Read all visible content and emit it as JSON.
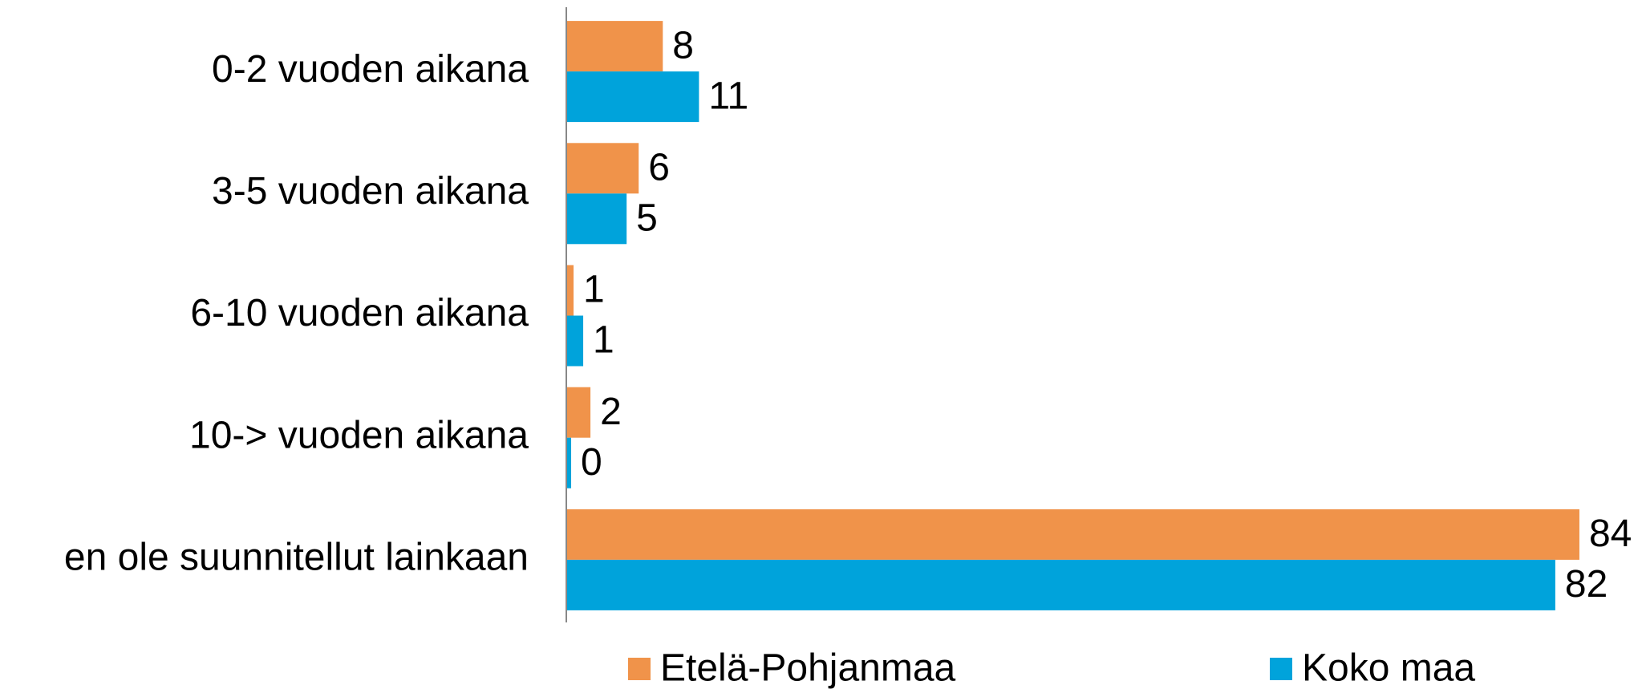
{
  "chart_data": {
    "type": "hbar",
    "categories": [
      "0-2 vuoden aikana",
      "3-5 vuoden aikana",
      "6-10 vuoden aikana",
      "10-> vuoden aikana",
      "en ole suunnitellut lainkaan"
    ],
    "series": [
      {
        "name": "Etelä-Pohjanmaa",
        "color": "#f0934a",
        "values": [
          8,
          6,
          0.6,
          2,
          84
        ],
        "value_labels": [
          "8",
          "6",
          "1",
          "2",
          "84"
        ]
      },
      {
        "name": "Koko maa",
        "color": "#00a3db",
        "values": [
          11,
          5,
          1.4,
          0.4,
          82
        ],
        "value_labels": [
          "11",
          "5",
          "1",
          "0",
          "82"
        ]
      }
    ],
    "xlim": [
      0,
      85
    ],
    "legend": "bottom"
  }
}
